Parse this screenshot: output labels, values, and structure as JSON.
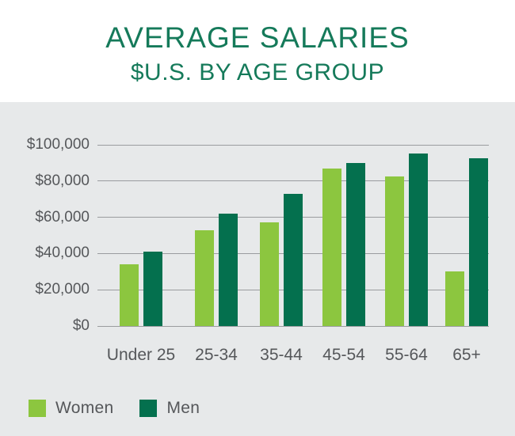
{
  "header": {
    "title": "AVERAGE SALARIES",
    "subtitle": "$U.S. BY AGE GROUP"
  },
  "chart_data": {
    "type": "bar",
    "title": "AVERAGE SALARIES",
    "subtitle": "$U.S. BY AGE GROUP",
    "categories": [
      "Under 25",
      "25-34",
      "35-44",
      "45-54",
      "55-64",
      "65+"
    ],
    "series": [
      {
        "name": "Women",
        "color": "#8CC63F",
        "values": [
          34000,
          53000,
          57000,
          87000,
          82500,
          30000
        ]
      },
      {
        "name": "Men",
        "color": "#04704E",
        "values": [
          41000,
          62000,
          73000,
          90000,
          95000,
          92500
        ]
      }
    ],
    "xlabel": "",
    "ylabel": "",
    "ylim": [
      0,
      100000
    ],
    "ytick_step": 20000,
    "ytick_labels_bottom_to_top": [
      "$0",
      "$20,000",
      "$40,000",
      "$60,000",
      "$80,000",
      "$100,000"
    ],
    "grid": true,
    "legend_position": "bottom-left"
  },
  "colors": {
    "title_green": "#157A5A",
    "women_green": "#8CC63F",
    "men_green": "#04704E",
    "panel_bg": "#E7E9EA",
    "header_bg": "#FFFFFF",
    "gridline": "#9A9C9F",
    "axis_text": "#55575A"
  }
}
